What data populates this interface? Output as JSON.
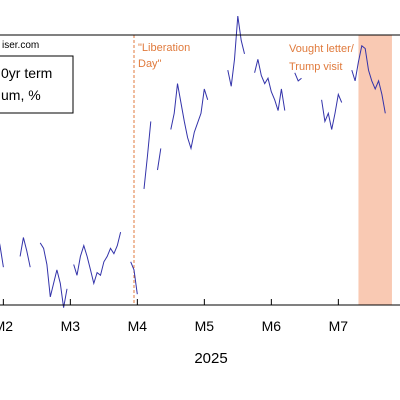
{
  "source_text": "iser.com",
  "chart_data": {
    "type": "line",
    "xlabel": "2025",
    "ylim": [
      0,
      100
    ],
    "grid": false,
    "legend_lines": [
      "0yr term",
      "um, %"
    ],
    "x_tick_labels": [
      "M2",
      "M3",
      "M4",
      "M5",
      "M6",
      "M7",
      "M"
    ],
    "series_color": "#3333aa",
    "annotations": [
      {
        "kind": "vline",
        "x": 2.0,
        "lines": [
          "\"Liberation",
          "Day\""
        ],
        "color": "#e07a3c"
      },
      {
        "kind": "span",
        "x_start": 5.35,
        "x_end": 5.85,
        "lines": [
          "Vought letter/",
          "Trump visit"
        ],
        "color": "#f9c9b3"
      }
    ],
    "segments": [
      [
        [
          -0.15,
          38
        ],
        [
          -0.1,
          33
        ],
        [
          -0.05,
          28
        ],
        [
          0.0,
          22
        ],
        [
          0.05,
          14
        ]
      ],
      [
        [
          0.3,
          18
        ],
        [
          0.35,
          25
        ],
        [
          0.4,
          20
        ],
        [
          0.45,
          14
        ]
      ],
      [
        [
          0.6,
          23
        ],
        [
          0.65,
          21
        ],
        [
          0.7,
          15
        ],
        [
          0.75,
          3
        ],
        [
          0.8,
          8
        ],
        [
          0.85,
          13
        ],
        [
          0.9,
          8
        ],
        [
          0.95,
          -1
        ],
        [
          1.0,
          6
        ]
      ],
      [
        [
          1.1,
          15
        ],
        [
          1.15,
          11
        ],
        [
          1.2,
          18
        ],
        [
          1.25,
          22
        ],
        [
          1.3,
          18
        ],
        [
          1.35,
          13
        ],
        [
          1.4,
          8
        ],
        [
          1.45,
          12
        ],
        [
          1.5,
          11
        ],
        [
          1.55,
          16
        ],
        [
          1.6,
          18
        ],
        [
          1.65,
          21
        ],
        [
          1.7,
          19
        ],
        [
          1.75,
          22
        ],
        [
          1.8,
          27
        ]
      ],
      [
        [
          1.95,
          16
        ],
        [
          2.0,
          13
        ],
        [
          2.05,
          4
        ]
      ],
      [
        [
          2.15,
          43
        ],
        [
          2.2,
          55
        ],
        [
          2.25,
          68
        ]
      ],
      [
        [
          2.35,
          50
        ],
        [
          2.4,
          58
        ]
      ],
      [
        [
          2.55,
          65
        ],
        [
          2.6,
          71
        ],
        [
          2.65,
          82
        ],
        [
          2.7,
          75
        ],
        [
          2.75,
          68
        ],
        [
          2.8,
          62
        ],
        [
          2.85,
          58
        ],
        [
          2.9,
          64
        ],
        [
          3.0,
          71
        ],
        [
          3.05,
          80
        ],
        [
          3.1,
          76
        ]
      ],
      [
        [
          3.4,
          87
        ],
        [
          3.45,
          81
        ],
        [
          3.5,
          91
        ],
        [
          3.55,
          107
        ],
        [
          3.6,
          98
        ],
        [
          3.65,
          93
        ]
      ],
      [
        [
          3.8,
          86
        ],
        [
          3.85,
          91
        ],
        [
          3.9,
          85
        ],
        [
          3.95,
          82
        ],
        [
          4.0,
          84
        ],
        [
          4.05,
          79
        ],
        [
          4.1,
          76
        ],
        [
          4.15,
          72
        ],
        [
          4.2,
          80
        ],
        [
          4.25,
          72
        ]
      ],
      [
        [
          4.4,
          86
        ],
        [
          4.45,
          83
        ],
        [
          4.5,
          84
        ]
      ],
      [
        [
          4.8,
          76
        ],
        [
          4.85,
          68
        ],
        [
          4.9,
          71
        ],
        [
          4.95,
          65
        ],
        [
          5.0,
          71
        ],
        [
          5.05,
          78
        ],
        [
          5.1,
          75
        ]
      ],
      [
        [
          5.25,
          87
        ],
        [
          5.3,
          83
        ],
        [
          5.35,
          90
        ],
        [
          5.4,
          96
        ],
        [
          5.45,
          95
        ],
        [
          5.5,
          87
        ],
        [
          5.55,
          83
        ],
        [
          5.6,
          80
        ],
        [
          5.65,
          83
        ],
        [
          5.7,
          78
        ],
        [
          5.75,
          71
        ]
      ]
    ]
  }
}
